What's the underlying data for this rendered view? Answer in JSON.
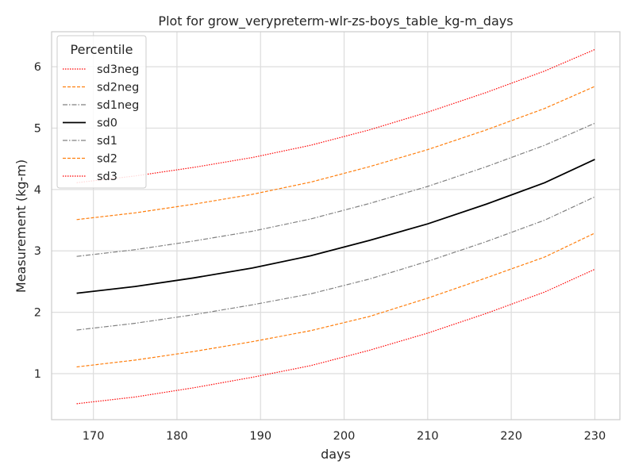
{
  "chart_data": {
    "type": "line",
    "title": "Plot for grow_verypreterm-wlr-zs-boys_table_kg-m_days",
    "xlabel": "days",
    "ylabel": "Measurement (kg-m)",
    "xlim": [
      165,
      233
    ],
    "ylim": [
      0.25,
      6.57
    ],
    "xticks": [
      170,
      180,
      190,
      200,
      210,
      220,
      230
    ],
    "yticks": [
      1,
      2,
      3,
      4,
      5,
      6
    ],
    "grid": true,
    "legend": {
      "title": "Percentile",
      "placement": "top-left"
    },
    "x": [
      168,
      175,
      182,
      189,
      196,
      203,
      210,
      217,
      224,
      230
    ],
    "series": [
      {
        "name": "sd3neg",
        "color": "#ff0000",
        "style": "dotted",
        "values": [
          0.51,
          0.62,
          0.77,
          0.94,
          1.13,
          1.38,
          1.66,
          1.98,
          2.33,
          2.7
        ]
      },
      {
        "name": "sd2neg",
        "color": "#ff7f0e",
        "style": "dashed",
        "values": [
          1.11,
          1.22,
          1.36,
          1.52,
          1.7,
          1.93,
          2.23,
          2.56,
          2.9,
          3.29
        ]
      },
      {
        "name": "sd1neg",
        "color": "#808080",
        "style": "dashdot",
        "values": [
          1.71,
          1.82,
          1.96,
          2.12,
          2.3,
          2.54,
          2.83,
          3.15,
          3.5,
          3.88
        ]
      },
      {
        "name": "sd0",
        "color": "#000000",
        "style": "solid",
        "values": [
          2.31,
          2.42,
          2.56,
          2.72,
          2.92,
          3.17,
          3.44,
          3.76,
          4.11,
          4.49
        ]
      },
      {
        "name": "sd1",
        "color": "#808080",
        "style": "dashdot",
        "values": [
          2.91,
          3.02,
          3.16,
          3.32,
          3.52,
          3.77,
          4.05,
          4.37,
          4.72,
          5.08
        ]
      },
      {
        "name": "sd2",
        "color": "#ff7f0e",
        "style": "dashed",
        "values": [
          3.51,
          3.62,
          3.76,
          3.92,
          4.12,
          4.37,
          4.65,
          4.97,
          5.32,
          5.68
        ]
      },
      {
        "name": "sd3",
        "color": "#ff0000",
        "style": "dotted",
        "values": [
          4.11,
          4.22,
          4.36,
          4.52,
          4.72,
          4.97,
          5.26,
          5.58,
          5.93,
          6.28
        ]
      }
    ]
  }
}
